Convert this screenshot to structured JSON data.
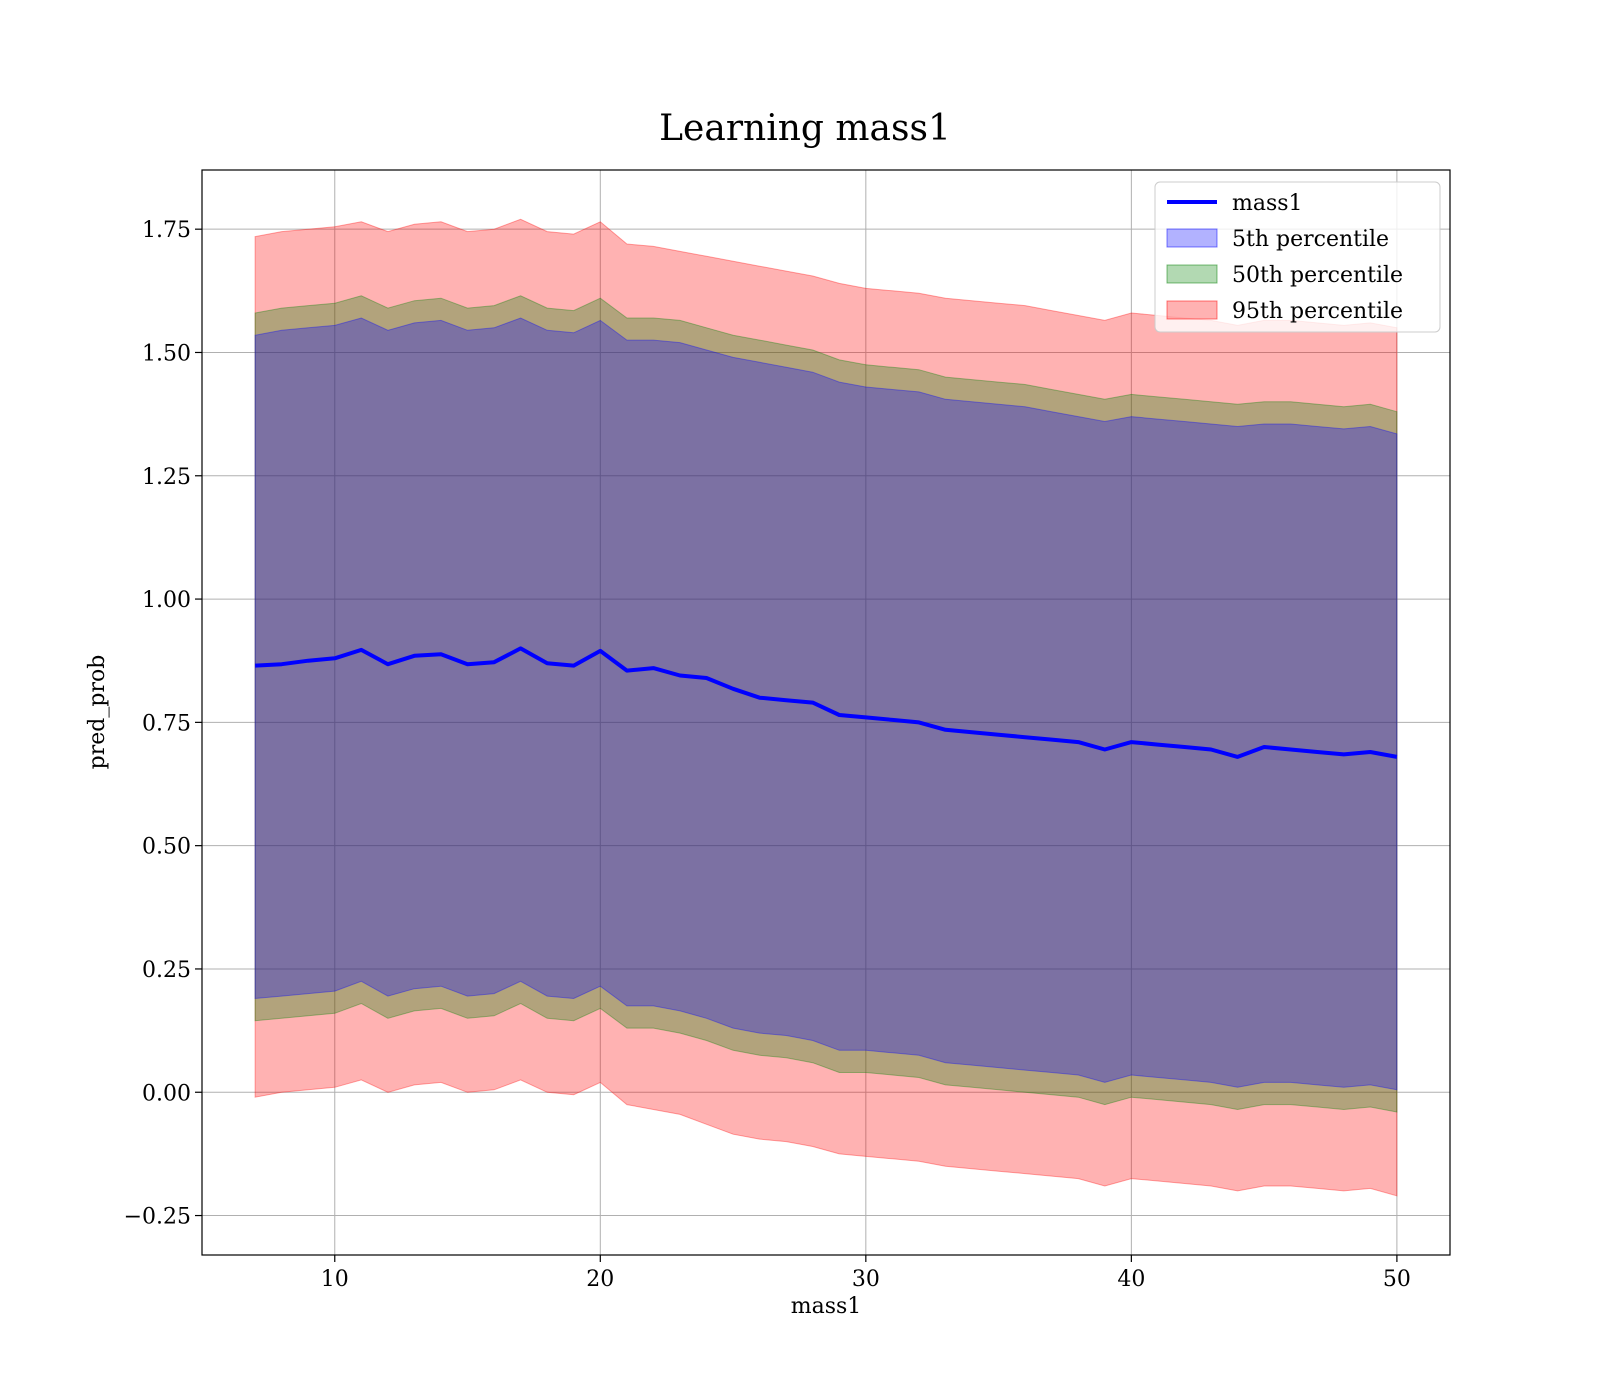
{
  "chart_data": {
    "type": "area",
    "title": "Learning mass1",
    "xlabel": "mass1",
    "ylabel": "pred_prob",
    "xlim": [
      5,
      52
    ],
    "ylim": [
      -0.33,
      1.87
    ],
    "x_ticks": [
      10,
      20,
      30,
      40,
      50
    ],
    "y_ticks": [
      -0.25,
      0.0,
      0.25,
      0.5,
      0.75,
      1.0,
      1.25,
      1.5,
      1.75
    ],
    "x_tick_labels": [
      "10",
      "20",
      "30",
      "40",
      "50"
    ],
    "y_tick_labels": [
      "−0.25",
      "0.00",
      "0.25",
      "0.50",
      "0.75",
      "1.00",
      "1.25",
      "1.50",
      "1.75"
    ],
    "grid": true,
    "legend_position": "top-right",
    "x": [
      7,
      8,
      9,
      10,
      11,
      12,
      13,
      14,
      15,
      16,
      17,
      18,
      19,
      20,
      21,
      22,
      23,
      24,
      25,
      26,
      27,
      28,
      29,
      30,
      31,
      32,
      33,
      34,
      35,
      36,
      37,
      38,
      39,
      40,
      41,
      42,
      43,
      44,
      45,
      46,
      47,
      48,
      49,
      50
    ],
    "series": [
      {
        "name": "mass1",
        "kind": "line",
        "color": "#0000ff",
        "values": [
          0.865,
          0.868,
          0.875,
          0.88,
          0.897,
          0.868,
          0.885,
          0.888,
          0.868,
          0.872,
          0.9,
          0.87,
          0.865,
          0.895,
          0.855,
          0.86,
          0.845,
          0.84,
          0.818,
          0.8,
          0.795,
          0.79,
          0.765,
          0.76,
          0.755,
          0.75,
          0.735,
          0.73,
          0.725,
          0.72,
          0.715,
          0.71,
          0.695,
          0.71,
          0.705,
          0.7,
          0.695,
          0.68,
          0.7,
          0.695,
          0.69,
          0.685,
          0.69,
          0.68
        ]
      },
      {
        "name": "5th percentile",
        "kind": "band",
        "color": "#0000ff",
        "opacity": 0.3,
        "upper": [
          1.535,
          1.545,
          1.55,
          1.555,
          1.57,
          1.545,
          1.56,
          1.565,
          1.545,
          1.55,
          1.57,
          1.545,
          1.54,
          1.565,
          1.525,
          1.525,
          1.52,
          1.505,
          1.49,
          1.48,
          1.47,
          1.46,
          1.44,
          1.43,
          1.425,
          1.42,
          1.405,
          1.4,
          1.395,
          1.39,
          1.38,
          1.37,
          1.36,
          1.37,
          1.365,
          1.36,
          1.355,
          1.35,
          1.355,
          1.355,
          1.35,
          1.345,
          1.35,
          1.335
        ],
        "lower": [
          0.19,
          0.195,
          0.2,
          0.205,
          0.225,
          0.195,
          0.21,
          0.215,
          0.195,
          0.2,
          0.225,
          0.195,
          0.19,
          0.215,
          0.175,
          0.175,
          0.165,
          0.15,
          0.13,
          0.12,
          0.115,
          0.105,
          0.085,
          0.085,
          0.08,
          0.075,
          0.06,
          0.055,
          0.05,
          0.045,
          0.04,
          0.035,
          0.02,
          0.035,
          0.03,
          0.025,
          0.02,
          0.01,
          0.02,
          0.02,
          0.015,
          0.01,
          0.015,
          0.005
        ]
      },
      {
        "name": "50th percentile",
        "kind": "band",
        "color": "#008000",
        "opacity": 0.3,
        "upper": [
          1.58,
          1.59,
          1.595,
          1.6,
          1.615,
          1.59,
          1.605,
          1.61,
          1.59,
          1.595,
          1.615,
          1.59,
          1.585,
          1.61,
          1.57,
          1.57,
          1.565,
          1.55,
          1.535,
          1.525,
          1.515,
          1.505,
          1.485,
          1.475,
          1.47,
          1.465,
          1.45,
          1.445,
          1.44,
          1.435,
          1.425,
          1.415,
          1.405,
          1.415,
          1.41,
          1.405,
          1.4,
          1.395,
          1.4,
          1.4,
          1.395,
          1.39,
          1.395,
          1.38
        ],
        "lower": [
          0.145,
          0.15,
          0.155,
          0.16,
          0.18,
          0.15,
          0.165,
          0.17,
          0.15,
          0.155,
          0.18,
          0.15,
          0.145,
          0.17,
          0.13,
          0.13,
          0.12,
          0.105,
          0.085,
          0.075,
          0.07,
          0.06,
          0.04,
          0.04,
          0.035,
          0.03,
          0.015,
          0.01,
          0.005,
          0.0,
          -0.005,
          -0.01,
          -0.025,
          -0.01,
          -0.015,
          -0.02,
          -0.025,
          -0.035,
          -0.025,
          -0.025,
          -0.03,
          -0.035,
          -0.03,
          -0.04
        ]
      },
      {
        "name": "95th percentile",
        "kind": "band",
        "color": "#ff0000",
        "opacity": 0.3,
        "upper": [
          1.735,
          1.745,
          1.75,
          1.755,
          1.765,
          1.745,
          1.76,
          1.765,
          1.745,
          1.75,
          1.77,
          1.745,
          1.74,
          1.765,
          1.72,
          1.715,
          1.705,
          1.695,
          1.685,
          1.675,
          1.665,
          1.655,
          1.64,
          1.63,
          1.625,
          1.62,
          1.61,
          1.605,
          1.6,
          1.595,
          1.585,
          1.575,
          1.565,
          1.58,
          1.575,
          1.57,
          1.565,
          1.555,
          1.565,
          1.565,
          1.56,
          1.555,
          1.56,
          1.55
        ],
        "lower": [
          -0.01,
          0.0,
          0.005,
          0.01,
          0.025,
          0.0,
          0.015,
          0.02,
          0.0,
          0.005,
          0.025,
          0.0,
          -0.005,
          0.02,
          -0.025,
          -0.035,
          -0.045,
          -0.065,
          -0.085,
          -0.095,
          -0.1,
          -0.11,
          -0.125,
          -0.13,
          -0.135,
          -0.14,
          -0.15,
          -0.155,
          -0.16,
          -0.165,
          -0.17,
          -0.175,
          -0.19,
          -0.175,
          -0.18,
          -0.185,
          -0.19,
          -0.2,
          -0.19,
          -0.19,
          -0.195,
          -0.2,
          -0.195,
          -0.21
        ]
      }
    ]
  }
}
